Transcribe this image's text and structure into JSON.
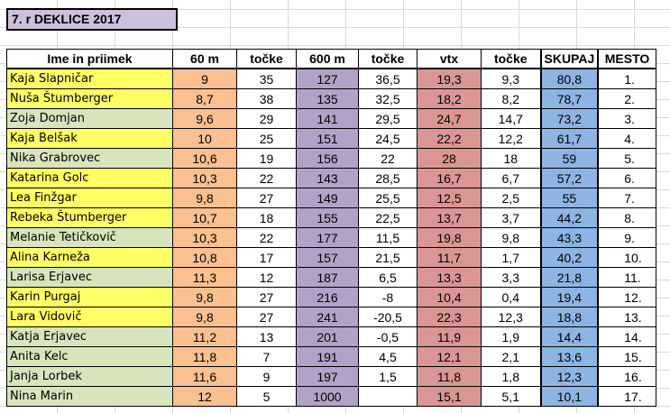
{
  "title": "7. r DEKLICE 2017",
  "headers": {
    "name": "Ime in priimek",
    "m60": "60 m",
    "pts1": "točke",
    "m600": "600 m",
    "pts2": "točke",
    "vtx": "vtx",
    "pts3": "točke",
    "skupaj": "SKUPAJ",
    "mesto": "MESTO"
  },
  "colors": {
    "title_bg": "#ccc0da",
    "col_60m": "#fac090",
    "col_600m": "#b3a2c7",
    "col_vtx": "#da9694",
    "col_skupaj": "#8db4e2",
    "name_yellow": "#ffff66",
    "name_green": "#d8e4bc"
  },
  "rows": [
    {
      "name": "Kaja Slapničar",
      "m60": "9",
      "pts1": "35",
      "m600": "127",
      "pts2": "36,5",
      "vtx": "19,3",
      "pts3": "9,3",
      "skupaj": "80,8",
      "mesto": "1.",
      "hl": "yellow"
    },
    {
      "name": "Nuša Štumberger",
      "m60": "8,7",
      "pts1": "38",
      "m600": "135",
      "pts2": "32,5",
      "vtx": "18,2",
      "pts3": "8,2",
      "skupaj": "78,7",
      "mesto": "2.",
      "hl": "yellow"
    },
    {
      "name": "Zoja Domjan",
      "m60": "9,6",
      "pts1": "29",
      "m600": "141",
      "pts2": "29,5",
      "vtx": "24,7",
      "pts3": "14,7",
      "skupaj": "73,2",
      "mesto": "3.",
      "hl": "green"
    },
    {
      "name": "Kaja Belšak",
      "m60": "10",
      "pts1": "25",
      "m600": "151",
      "pts2": "24,5",
      "vtx": "22,2",
      "pts3": "12,2",
      "skupaj": "61,7",
      "mesto": "4.",
      "hl": "yellow"
    },
    {
      "name": "Nika Grabrovec",
      "m60": "10,6",
      "pts1": "19",
      "m600": "156",
      "pts2": "22",
      "vtx": "28",
      "pts3": "18",
      "skupaj": "59",
      "mesto": "5.",
      "hl": "green"
    },
    {
      "name": "Katarina Golc",
      "m60": "10,3",
      "pts1": "22",
      "m600": "143",
      "pts2": "28,5",
      "vtx": "16,7",
      "pts3": "6,7",
      "skupaj": "57,2",
      "mesto": "6.",
      "hl": "yellow"
    },
    {
      "name": "Lea Finžgar",
      "m60": "9,8",
      "pts1": "27",
      "m600": "149",
      "pts2": "25,5",
      "vtx": "12,5",
      "pts3": "2,5",
      "skupaj": "55",
      "mesto": "7.",
      "hl": "yellow"
    },
    {
      "name": "Rebeka Štumberger",
      "m60": "10,7",
      "pts1": "18",
      "m600": "155",
      "pts2": "22,5",
      "vtx": "13,7",
      "pts3": "3,7",
      "skupaj": "44,2",
      "mesto": "8.",
      "hl": "yellow"
    },
    {
      "name": "Melanie Tetičkovič",
      "m60": "10,3",
      "pts1": "22",
      "m600": "177",
      "pts2": "11,5",
      "vtx": "19,8",
      "pts3": "9,8",
      "skupaj": "43,3",
      "mesto": "9.",
      "hl": "green"
    },
    {
      "name": "Alina Karneža",
      "m60": "10,8",
      "pts1": "17",
      "m600": "157",
      "pts2": "21,5",
      "vtx": "11,7",
      "pts3": "1,7",
      "skupaj": "40,2",
      "mesto": "10.",
      "hl": "yellow"
    },
    {
      "name": "Larisa Erjavec",
      "m60": "11,3",
      "pts1": "12",
      "m600": "187",
      "pts2": "6,5",
      "vtx": "13,3",
      "pts3": "3,3",
      "skupaj": "21,8",
      "mesto": "11.",
      "hl": "green"
    },
    {
      "name": "Karin Purgaj",
      "m60": "9,8",
      "pts1": "27",
      "m600": "216",
      "pts2": "-8",
      "vtx": "10,4",
      "pts3": "0,4",
      "skupaj": "19,4",
      "mesto": "12.",
      "hl": "yellow"
    },
    {
      "name": "Lara Vidovič",
      "m60": "9,8",
      "pts1": "27",
      "m600": "241",
      "pts2": "-20,5",
      "vtx": "22,3",
      "pts3": "12,3",
      "skupaj": "18,8",
      "mesto": "13.",
      "hl": "yellow"
    },
    {
      "name": "Katja Erjavec",
      "m60": "11,2",
      "pts1": "13",
      "m600": "201",
      "pts2": "-0,5",
      "vtx": "11,9",
      "pts3": "1,9",
      "skupaj": "14,4",
      "mesto": "14.",
      "hl": "green"
    },
    {
      "name": "Anita Kelc",
      "m60": "11,8",
      "pts1": "7",
      "m600": "191",
      "pts2": "4,5",
      "vtx": "12,1",
      "pts3": "2,1",
      "skupaj": "13,6",
      "mesto": "15.",
      "hl": "green"
    },
    {
      "name": "Janja Lorbek",
      "m60": "11,6",
      "pts1": "9",
      "m600": "197",
      "pts2": "1,5",
      "vtx": "11,8",
      "pts3": "1,8",
      "skupaj": "12,3",
      "mesto": "16.",
      "hl": "green"
    },
    {
      "name": "Nina Marin",
      "m60": "12",
      "pts1": "5",
      "m600": "1000",
      "pts2": "",
      "vtx": "15,1",
      "pts3": "5,1",
      "skupaj": "10,1",
      "mesto": "17.",
      "hl": "green"
    }
  ]
}
